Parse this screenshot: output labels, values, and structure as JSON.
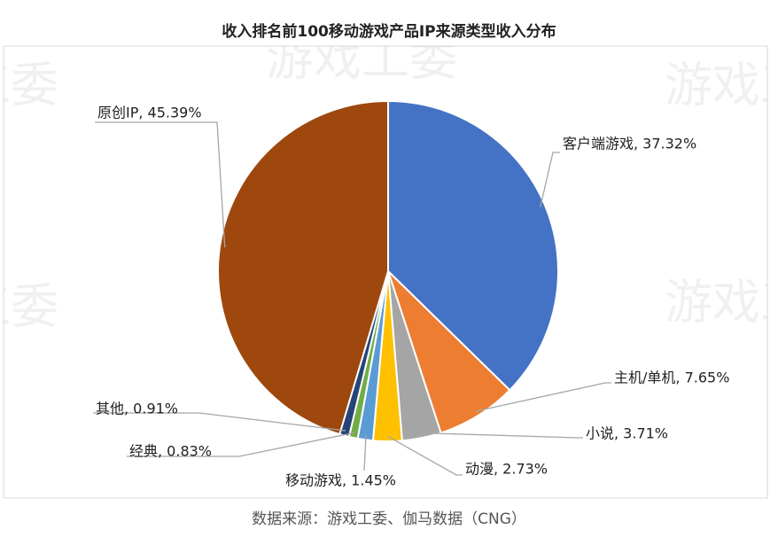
{
  "chart_data": {
    "type": "pie",
    "title": "收入排名前100移动游戏产品IP来源类型收入分布",
    "labels": [
      "客户端游戏, 37.32%",
      "主机/单机, 7.65%",
      "小说, 3.71%",
      "动漫, 2.73%",
      "移动游戏, 1.45%",
      "经典, 0.83%",
      "其他, 0.91%",
      "原创IP, 45.39%"
    ],
    "values": [
      37.32,
      7.65,
      3.71,
      2.73,
      1.45,
      0.83,
      0.91,
      45.39
    ],
    "colors": [
      "#4472c4",
      "#ed7d31",
      "#a5a5a5",
      "#ffc000",
      "#5b9bd5",
      "#70ad47",
      "#264478",
      "#9e480e"
    ],
    "watermark": "游戏工委",
    "source": "数据来源：游戏工委、伽马数据（CNG）"
  }
}
